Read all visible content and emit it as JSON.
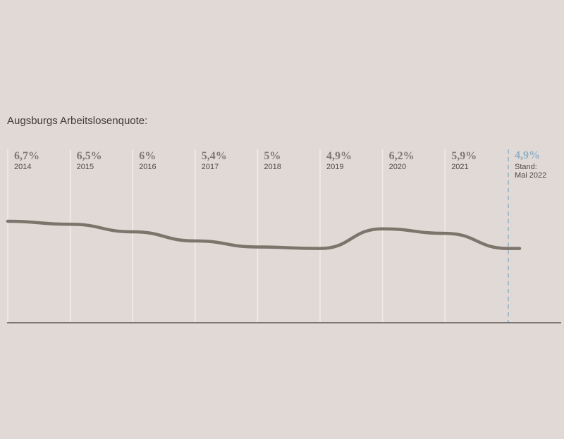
{
  "colors": {
    "background": "#e1d9d6",
    "line": "#7d746c",
    "gridline": "#f1ecea",
    "baseline": "#5b5550",
    "current_marker": "#8fb1c6",
    "value_text": "#807872",
    "year_text": "#4e4843",
    "title_text": "#3f3a36"
  },
  "chart_data": {
    "type": "line",
    "title": "Augsburgs Arbeitslosenquote:",
    "xlabel": "",
    "ylabel": "",
    "grid": true,
    "ylim": [
      0,
      12
    ],
    "points": [
      {
        "x": "2014",
        "value": 6.7,
        "label": "6,7%"
      },
      {
        "x": "2015",
        "value": 6.5,
        "label": "6,5%"
      },
      {
        "x": "2016",
        "value": 6.0,
        "label": "6%"
      },
      {
        "x": "2017",
        "value": 5.4,
        "label": "5,4%"
      },
      {
        "x": "2018",
        "value": 5.0,
        "label": "5%"
      },
      {
        "x": "2019",
        "value": 4.9,
        "label": "4,9%"
      },
      {
        "x": "2020",
        "value": 6.2,
        "label": "6,2%"
      },
      {
        "x": "2021",
        "value": 5.9,
        "label": "5,9%"
      }
    ],
    "current": {
      "value": 4.9,
      "label": "4,9%",
      "note_line1": "Stand:",
      "note_line2": "Mai 2022"
    }
  }
}
